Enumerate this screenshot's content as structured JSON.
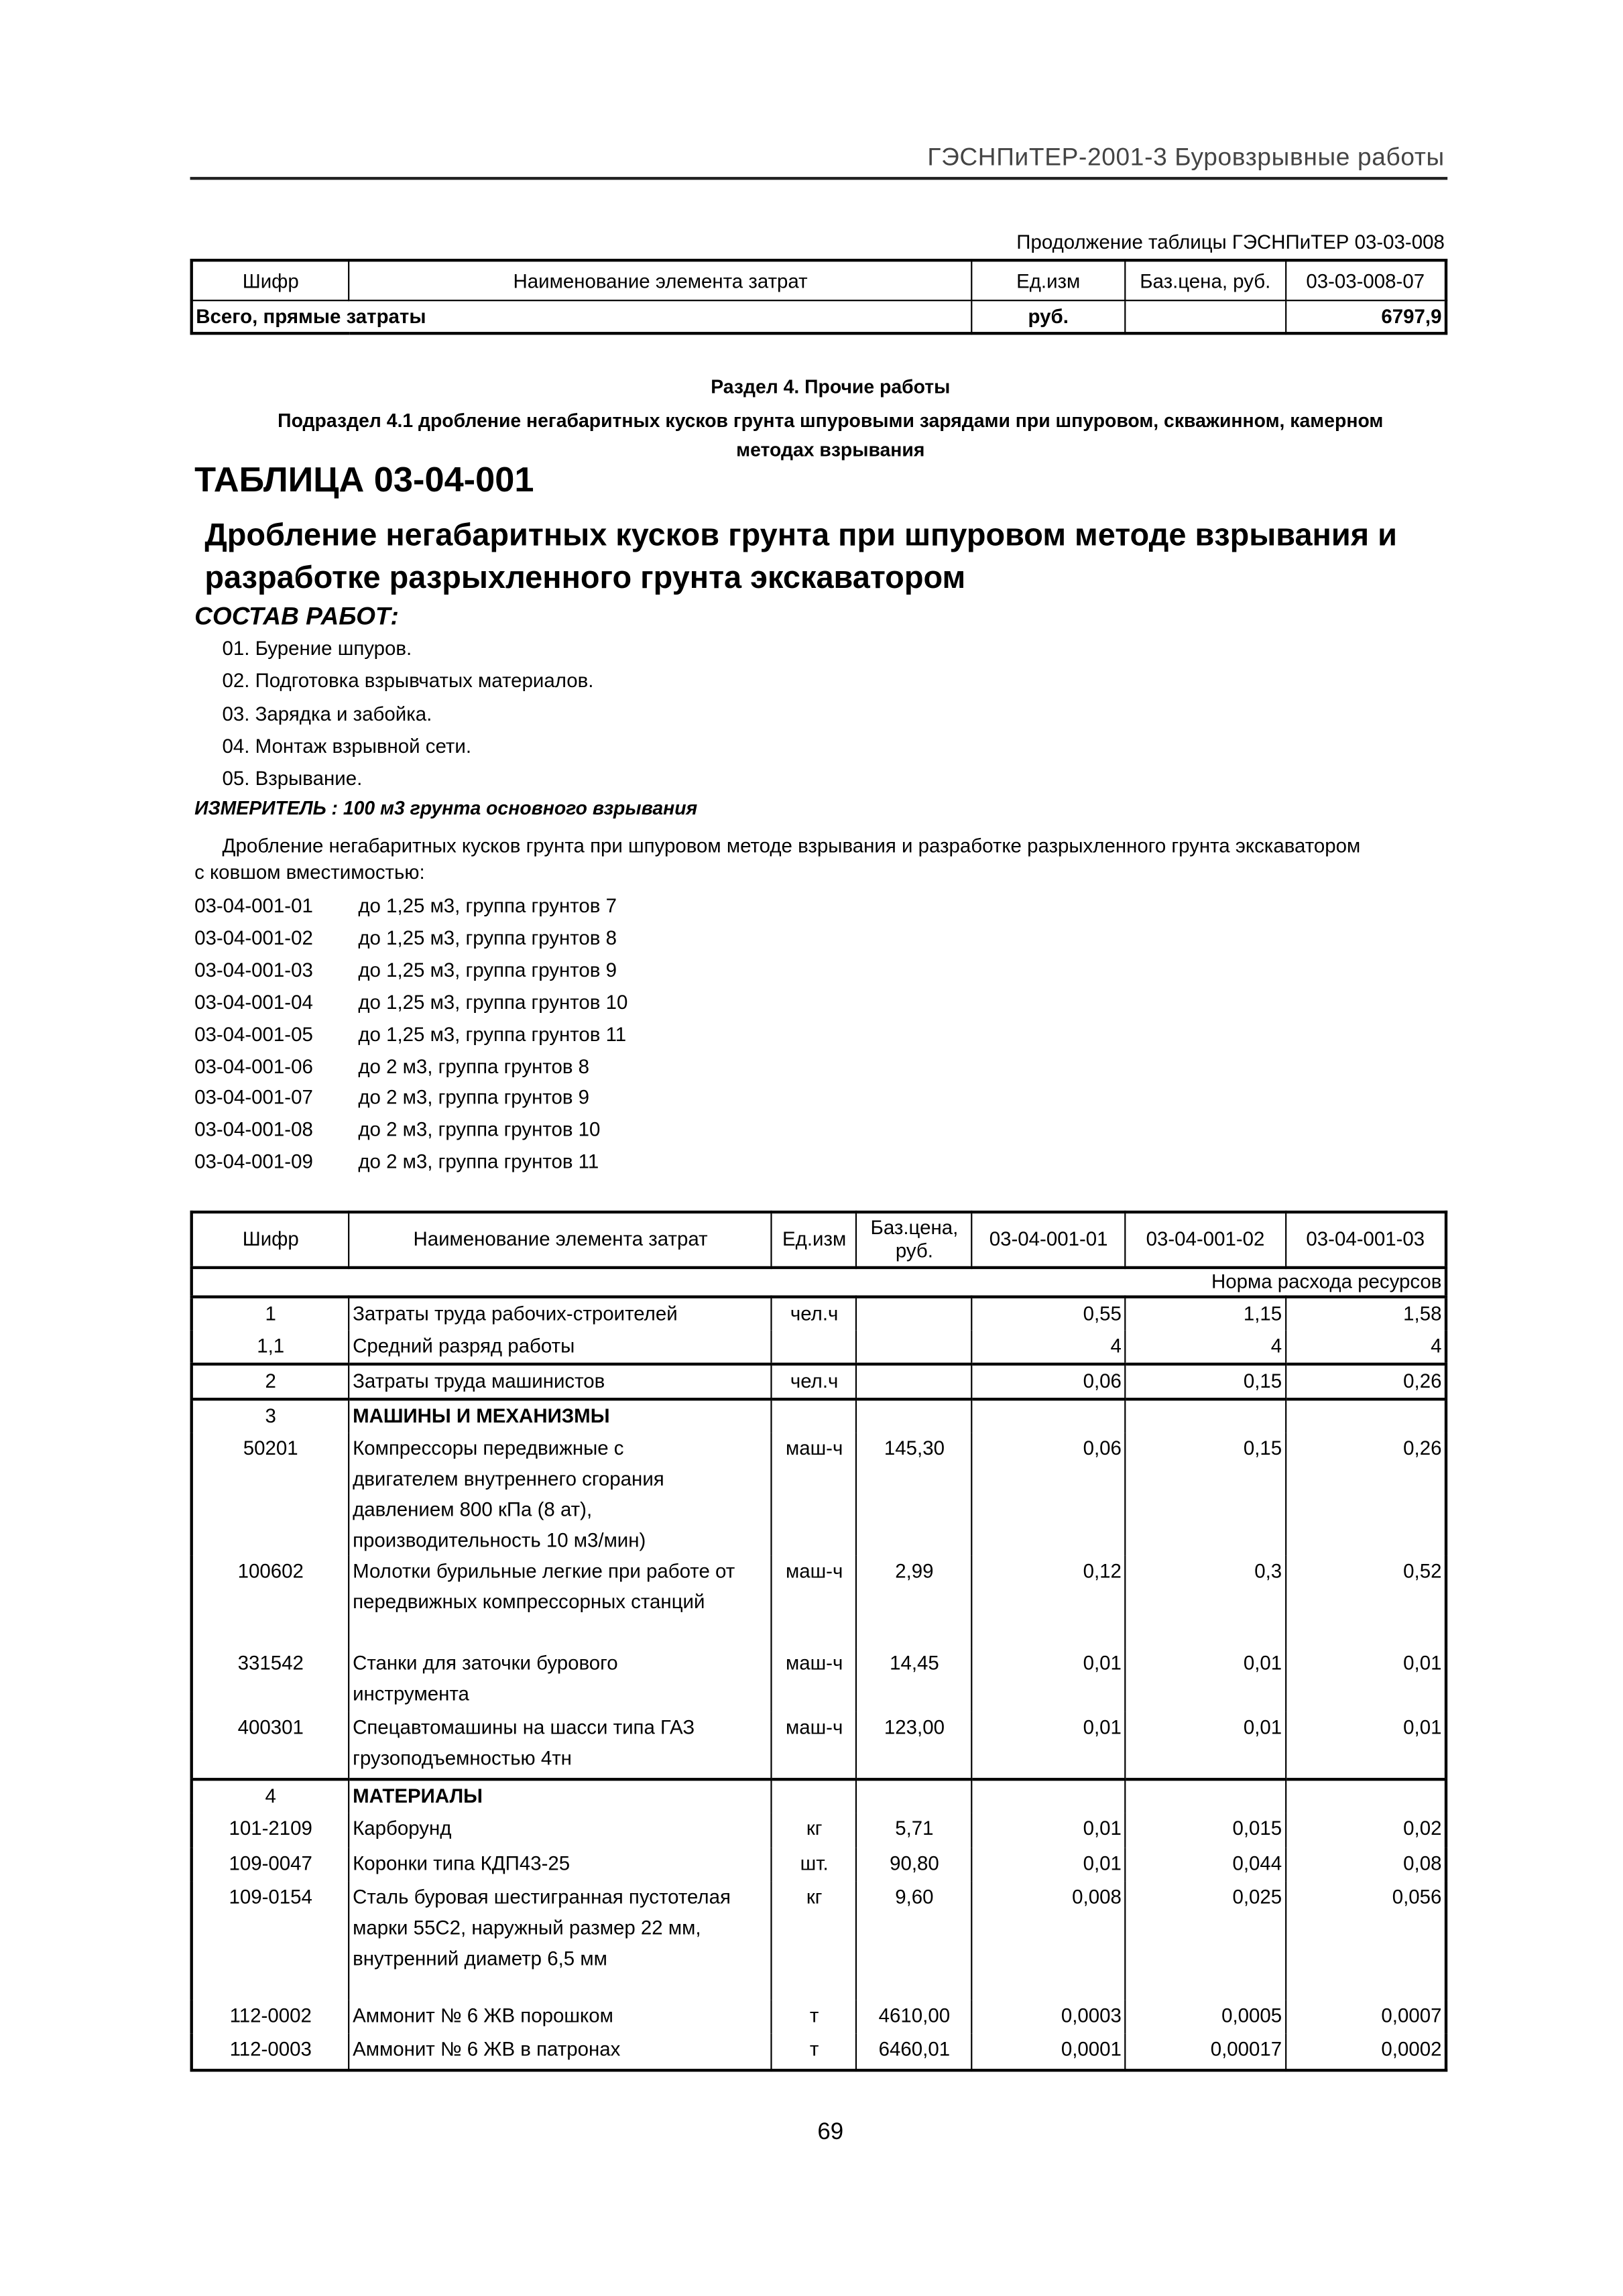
{
  "header": {
    "running_title": "ГЭСНПиТЕР-2001-3 Буровзрывные работы",
    "continuation": "Продолжение таблицы ГЭСНПиТЕР 03-03-008"
  },
  "prev_table": {
    "columns": [
      "Шифр",
      "Наименование элемента затрат",
      "Ед.изм",
      "Баз.цена, руб.",
      "03-03-008-07"
    ],
    "total": {
      "label": "Всего, прямые затраты",
      "unit": "руб.",
      "value": "6797,9"
    }
  },
  "section": {
    "title": "Раздел 4. Прочие работы",
    "subsection_line1": "Подраздел 4.1 дробление негабаритных кусков грунта шпуровыми зарядами при шпуровом, скважинном, камерном",
    "subsection_line2": "методах взрывания"
  },
  "table_id": "ТАБЛИЦА 03-04-001",
  "table_title": [
    "Дробление негабаритных кусков грунта при шпуровом методе взрывания и",
    "разработке разрыхленного грунта экскаватором"
  ],
  "work_heading": "СОСТАВ РАБОТ:",
  "work_items": [
    "01. Бурение шпуров.",
    "02. Подготовка взрывчатых материалов.",
    "03. Зарядка и забойка.",
    "04. Монтаж взрывной сети.",
    "05. Взрывание."
  ],
  "measure": "ИЗМЕРИТЕЛЬ : 100 м3 грунта основного взрывания",
  "intro": [
    "Дробление негабаритных кусков грунта при шпуровом методе взрывания и разработке разрыхленного грунта экскаватором",
    "с ковшом вместимостью:"
  ],
  "variants": [
    {
      "code": "03-04-001-01",
      "desc": "до 1,25 м3, группа грунтов 7"
    },
    {
      "code": "03-04-001-02",
      "desc": "до 1,25 м3, группа грунтов 8"
    },
    {
      "code": "03-04-001-03",
      "desc": "до 1,25 м3, группа грунтов 9"
    },
    {
      "code": "03-04-001-04",
      "desc": "до 1,25 м3, группа грунтов 10"
    },
    {
      "code": "03-04-001-05",
      "desc": "до 1,25 м3, группа грунтов 11"
    },
    {
      "code": "03-04-001-06",
      "desc": "до 2 м3, группа грунтов 8"
    },
    {
      "code": "03-04-001-07",
      "desc": "до 2 м3, группа грунтов 9"
    },
    {
      "code": "03-04-001-08",
      "desc": "до 2 м3, группа грунтов 10"
    },
    {
      "code": "03-04-001-09",
      "desc": "до 2 м3, группа грунтов 11"
    }
  ],
  "main_table": {
    "columns": [
      "Шифр",
      "Наименование элемента затрат",
      "Ед.изм",
      "Баз.цена, руб.",
      "03-04-001-01",
      "03-04-001-02",
      "03-04-001-03"
    ],
    "norm_label": "Норма расхода ресурсов",
    "rows": [
      {
        "code": "1",
        "name": "Затраты труда рабочих-строителей",
        "unit": "чел.ч",
        "price": "",
        "v": [
          "0,55",
          "1,15",
          "1,58"
        ]
      },
      {
        "code": "1,1",
        "name": "Средний разряд работы",
        "unit": "",
        "price": "",
        "v": [
          "4",
          "4",
          "4"
        ],
        "group_end": true
      },
      {
        "code": "2",
        "name": "Затраты труда машинистов",
        "unit": "чел.ч",
        "price": "",
        "v": [
          "0,06",
          "0,15",
          "0,26"
        ],
        "group_end": true
      },
      {
        "code": "3",
        "name": "МАШИНЫ И МЕХАНИЗМЫ",
        "unit": "",
        "price": "",
        "v": [
          "",
          "",
          ""
        ],
        "bold": true
      },
      {
        "code": "50201",
        "name": "Компрессоры передвижные с\nдвигателем внутреннего сгорания\nдавлением 800 кПа (8 ат),\nпроизводительность 10 м3/мин)",
        "unit": "маш-ч",
        "price": "145,30",
        "v": [
          "0,06",
          "0,15",
          "0,26"
        ]
      },
      {
        "code": "100602",
        "name": "Молотки бурильные легкие при работе от\nпередвижных компрессорных станций",
        "unit": "маш-ч",
        "price": "2,99",
        "v": [
          "0,12",
          "0,3",
          "0,52"
        ]
      },
      {
        "code": "331542",
        "name": "Станки для заточки бурового\nинструмента",
        "unit": "маш-ч",
        "price": "14,45",
        "v": [
          "0,01",
          "0,01",
          "0,01"
        ]
      },
      {
        "code": "400301",
        "name": "Спецавтомашины на шасси типа ГАЗ\nгрузоподъемностью 4тн",
        "unit": "маш-ч",
        "price": "123,00",
        "v": [
          "0,01",
          "0,01",
          "0,01"
        ],
        "group_end": true
      },
      {
        "code": "4",
        "name": "МАТЕРИАЛЫ",
        "unit": "",
        "price": "",
        "v": [
          "",
          "",
          ""
        ],
        "bold": true
      },
      {
        "code": "101-2109",
        "name": "Карборунд",
        "unit": "кг",
        "price": "5,71",
        "v": [
          "0,01",
          "0,015",
          "0,02"
        ]
      },
      {
        "code": "109-0047",
        "name": "Коронки типа КДП43-25",
        "unit": "шт.",
        "price": "90,80",
        "v": [
          "0,01",
          "0,044",
          "0,08"
        ]
      },
      {
        "code": "109-0154",
        "name": "Сталь буровая шестигранная пустотелая\nмарки 55С2, наружный размер 22 мм,\nвнутренний диаметр 6,5 мм",
        "unit": "кг",
        "price": "9,60",
        "v": [
          "0,008",
          "0,025",
          "0,056"
        ]
      },
      {
        "code": "112-0002",
        "name": "Аммонит № 6 ЖВ порошком",
        "unit": "т",
        "price": "4610,00",
        "v": [
          "0,0003",
          "0,0005",
          "0,0007"
        ]
      },
      {
        "code": "112-0003",
        "name": "Аммонит № 6 ЖВ в патронах",
        "unit": "т",
        "price": "6460,01",
        "v": [
          "0,0001",
          "0,00017",
          "0,0002"
        ]
      }
    ]
  },
  "page_number": "69"
}
